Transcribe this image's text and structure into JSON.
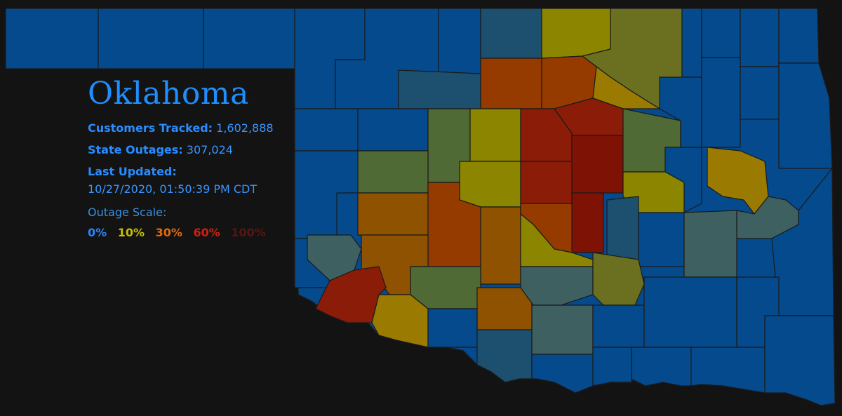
{
  "state": "Oklahoma",
  "stats": {
    "customers_label": "Customers Tracked:",
    "customers_value": "1,602,888",
    "outages_label": "State Outages:",
    "outages_value": "307,024",
    "updated_label": "Last Updated:",
    "updated_value": "10/27/2020, 01:50:39 PM CDT"
  },
  "scale": {
    "title": "Outage Scale:",
    "steps": [
      {
        "label": "0%",
        "color": "#2a86ff"
      },
      {
        "label": "10%",
        "color": "#c9c000"
      },
      {
        "label": "30%",
        "color": "#e46a10"
      },
      {
        "label": "60%",
        "color": "#d02010"
      },
      {
        "label": "100%",
        "color": "#5a1410"
      }
    ]
  },
  "colors": {
    "background": "#131313",
    "blue": "#044a8c",
    "teal": "#1d4f6e",
    "slate": "#3e6060",
    "green": "#506a36",
    "olive": "#6b7020",
    "yellow": "#8c8500",
    "gold": "#9a7a00",
    "orange": "#8e5200",
    "burnt": "#963b00",
    "red": "#8a1c08",
    "darkred": "#7e1204"
  }
}
